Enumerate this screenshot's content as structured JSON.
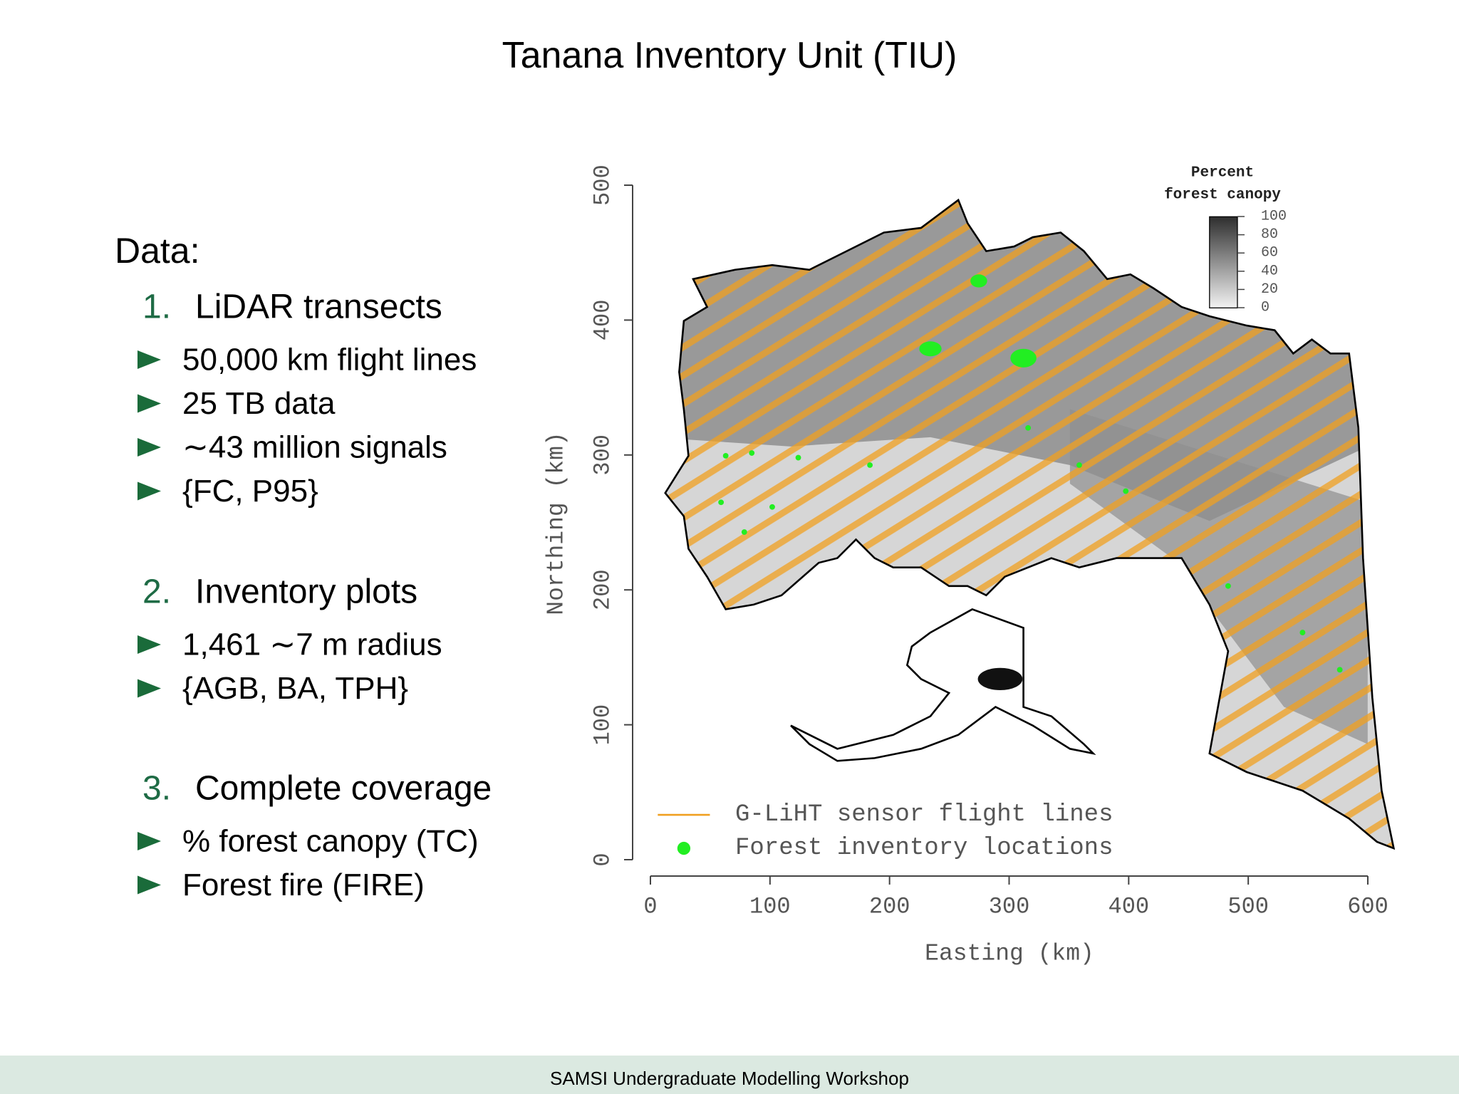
{
  "title": "Tanana Inventory Unit (TIU)",
  "intro": "Data:",
  "sections": [
    {
      "number": "1.",
      "heading": "LiDAR transects",
      "bullets": [
        "50,000 km flight lines",
        "25 TB data",
        "∼43 million signals",
        "{FC, P95}"
      ]
    },
    {
      "number": "2.",
      "heading": "Inventory plots",
      "bullets": [
        "1,461 ∼7 m radius",
        "{AGB, BA, TPH}"
      ]
    },
    {
      "number": "3.",
      "heading": "Complete coverage",
      "bullets": [
        "% forest canopy (TC)",
        "Forest fire (FIRE)"
      ]
    }
  ],
  "figure": {
    "xlabel": "Easting (km)",
    "ylabel": "Northing (km)",
    "xlim": [
      0,
      600
    ],
    "ylim": [
      0,
      500
    ],
    "xticks": [
      0,
      100,
      200,
      300,
      400,
      500,
      600
    ],
    "yticks": [
      0,
      100,
      200,
      300,
      400,
      500
    ],
    "colorbar": {
      "title": [
        "Percent",
        "forest canopy"
      ],
      "lim": [
        0,
        100
      ],
      "ticks": [
        0,
        20,
        40,
        60,
        80,
        100
      ]
    },
    "legend": [
      "G-LiHT sensor flight lines",
      "Forest inventory locations"
    ]
  },
  "footer": "SAMSI Undergraduate Modelling Workshop"
}
